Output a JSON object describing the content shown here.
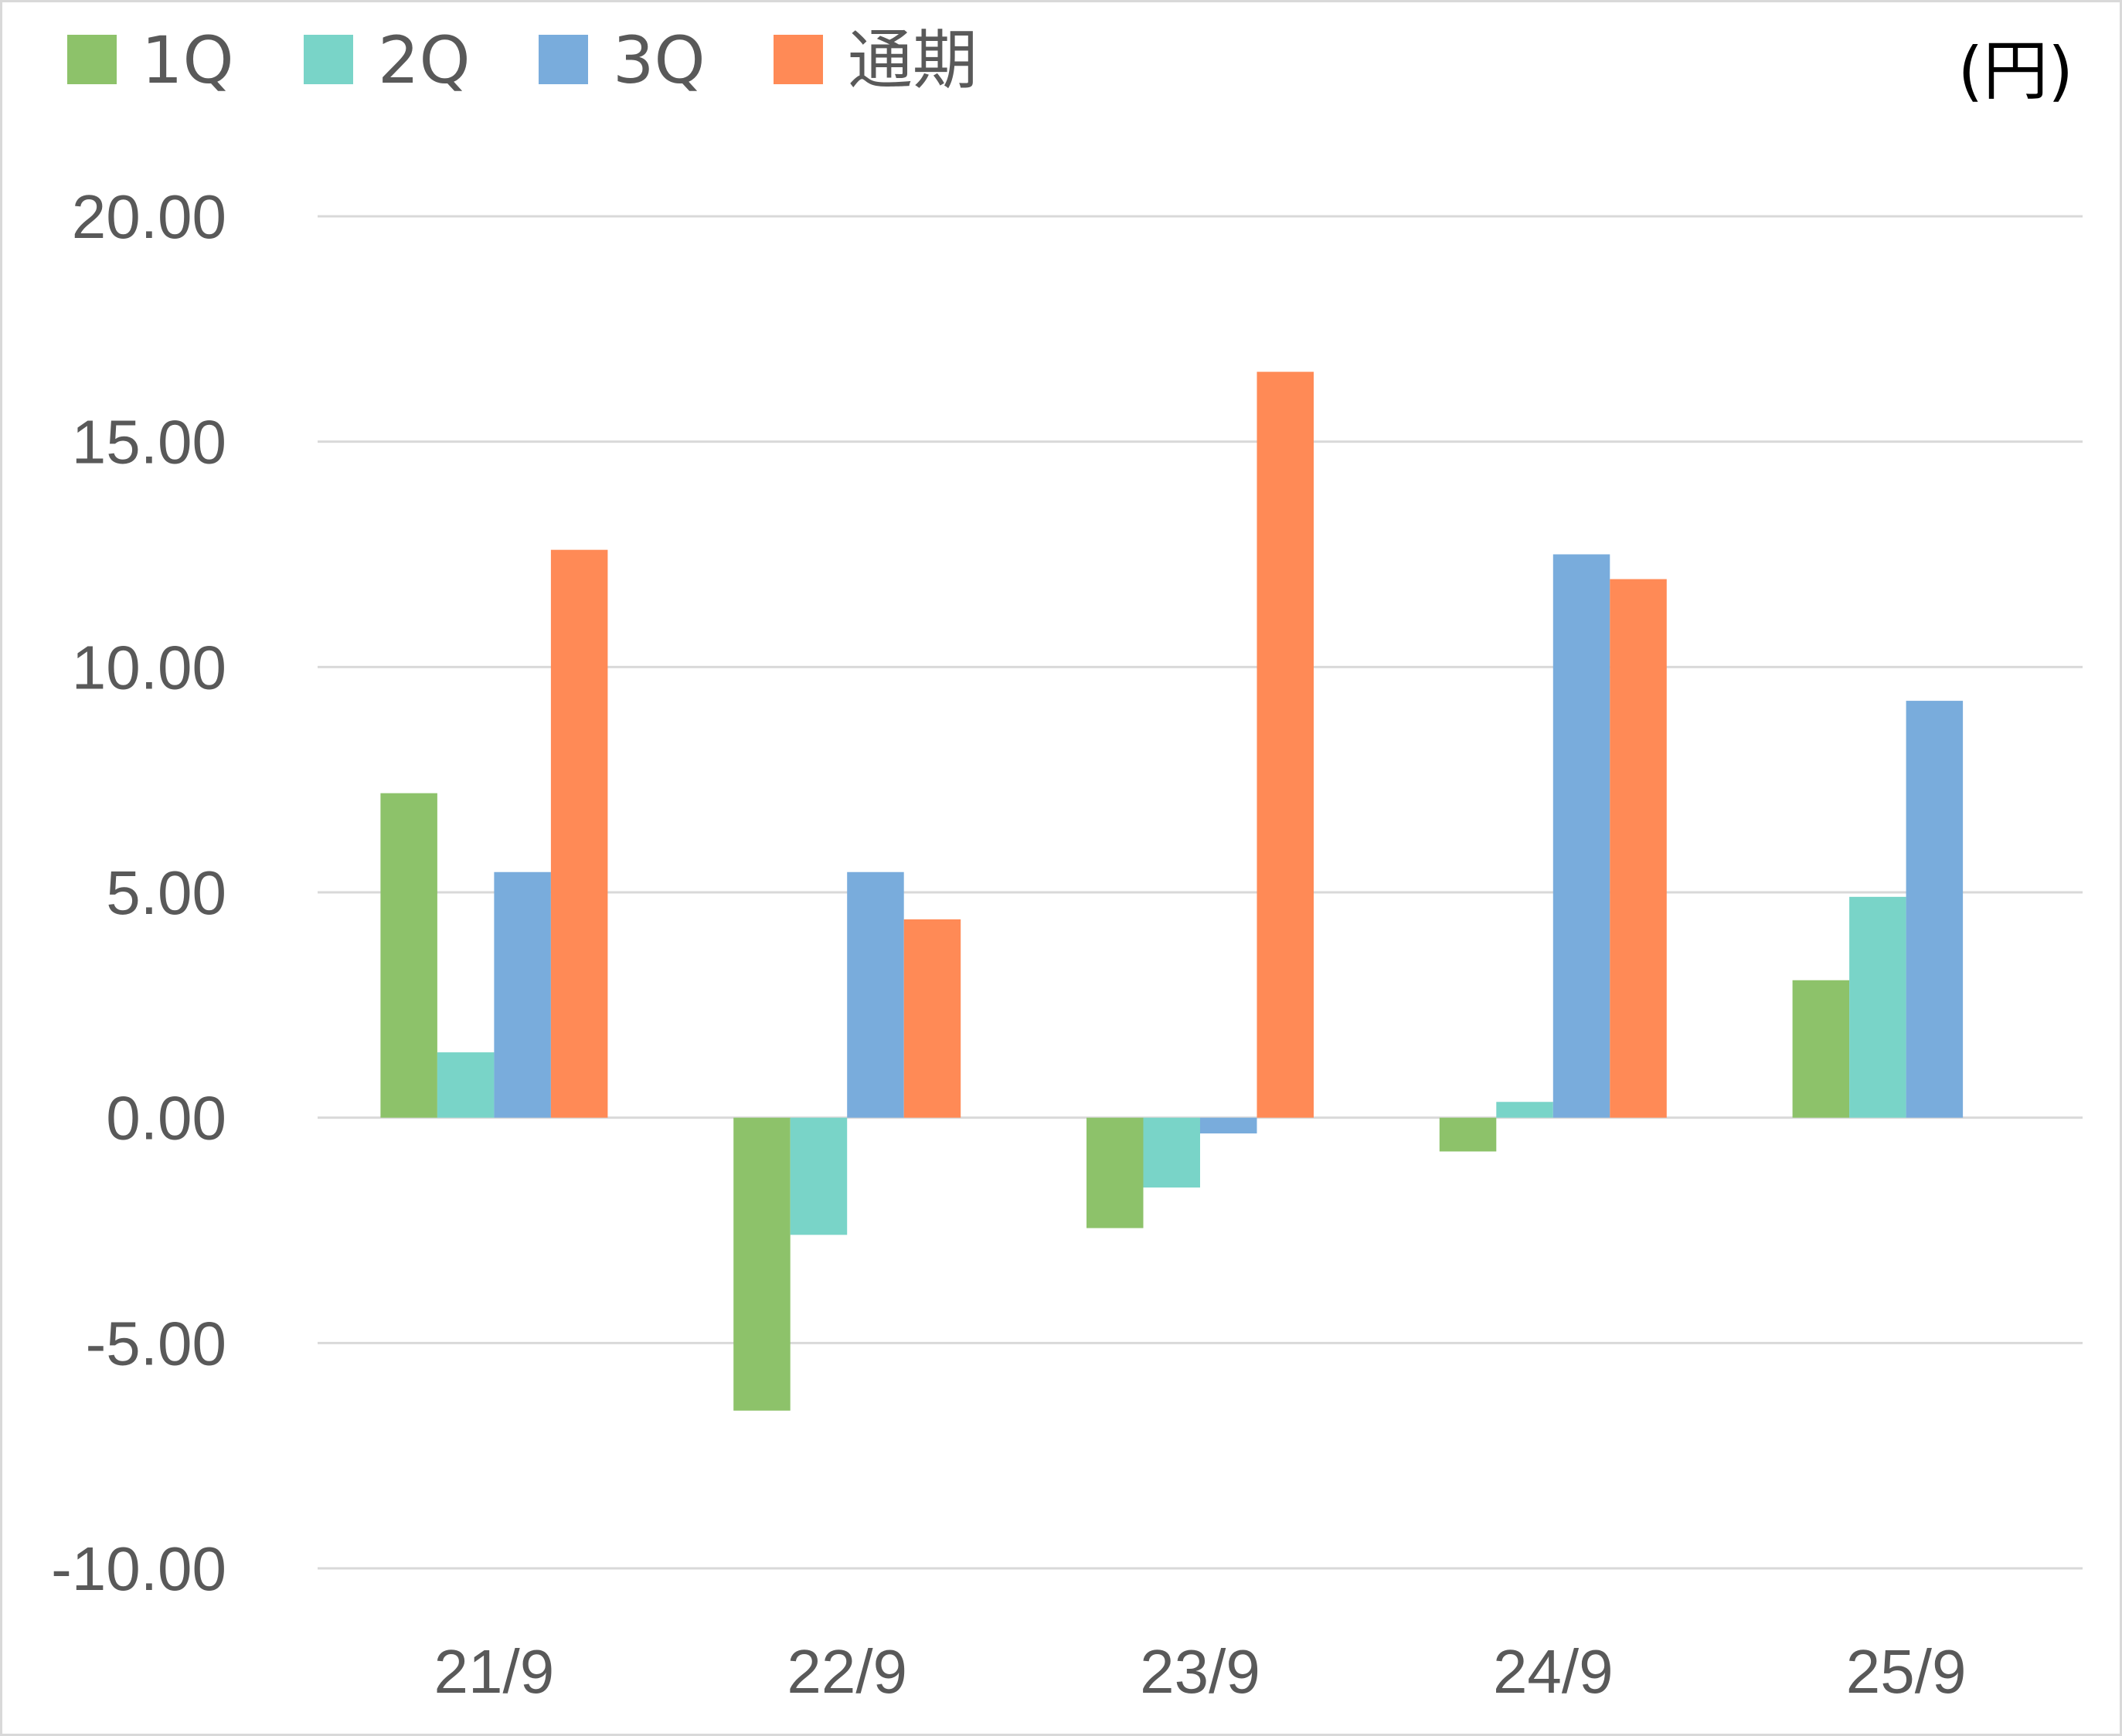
{
  "chart_data": {
    "type": "bar",
    "unit_label": "(円)",
    "categories": [
      "21/9",
      "22/9",
      "23/9",
      "24/9",
      "25/9"
    ],
    "series": [
      {
        "name": "1Q",
        "color": "#8dc26a",
        "values": [
          7.2,
          -6.5,
          -2.45,
          -0.75,
          3.05
        ]
      },
      {
        "name": "2Q",
        "color": "#79d4c8",
        "values": [
          1.45,
          -2.6,
          -1.55,
          0.35,
          4.9
        ]
      },
      {
        "name": "3Q",
        "color": "#79acdc",
        "values": [
          5.45,
          5.45,
          -0.35,
          12.5,
          9.25
        ]
      },
      {
        "name": "通期",
        "color": "#ff8a56",
        "values": [
          12.6,
          4.4,
          16.55,
          11.95,
          null
        ]
      }
    ],
    "ylim": [
      -10,
      20
    ],
    "yticks": [
      "20.00",
      "15.00",
      "10.00",
      "5.00",
      "0.00",
      "-5.00",
      "-10.00"
    ],
    "grid": true,
    "legend_position": "top-left"
  }
}
